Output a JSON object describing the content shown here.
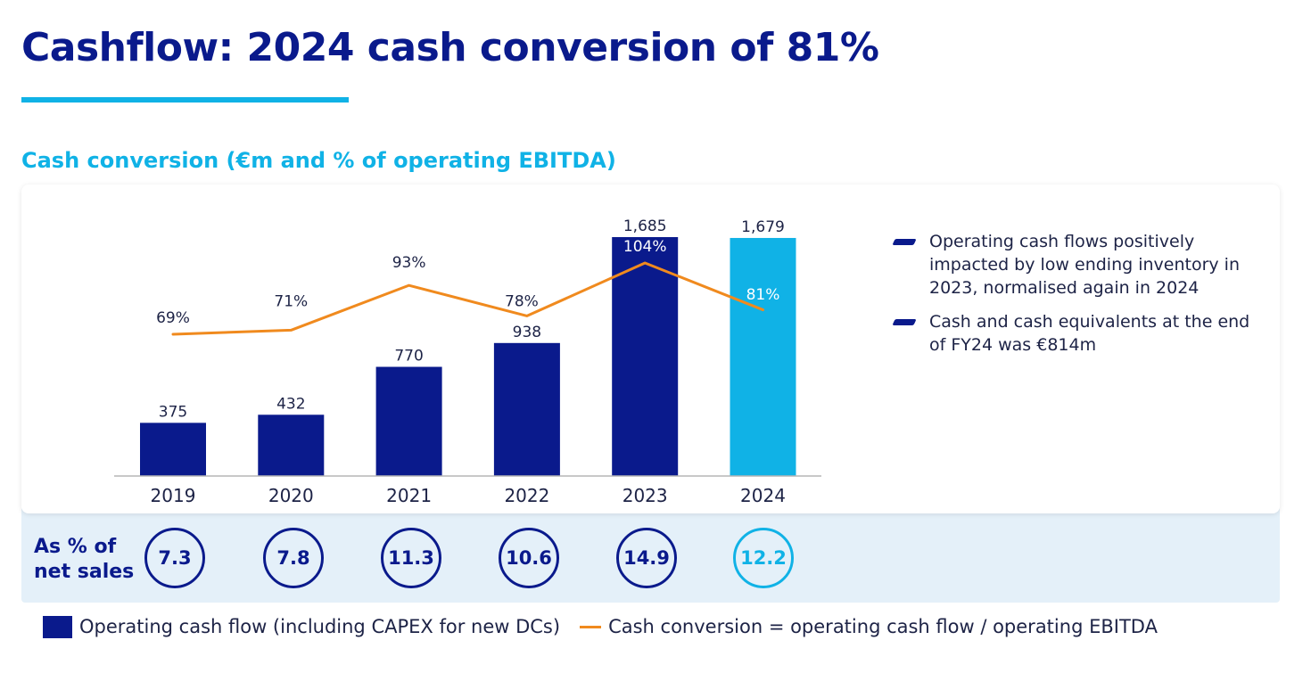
{
  "header": {
    "title": "Cashflow: 2024 cash conversion of 81%",
    "subtitle": "Cash conversion (€m and % of operating EBITDA)"
  },
  "colors": {
    "dark_blue": "#0a1a8c",
    "light_blue": "#10b2e6",
    "orange": "#f08a1e",
    "band": "#e4f0f9"
  },
  "chart_data": {
    "type": "bar",
    "title": "Cash conversion (€m and % of operating EBITDA)",
    "categories": [
      "2019",
      "2020",
      "2021",
      "2022",
      "2023",
      "2024"
    ],
    "series": [
      {
        "name": "Operating cash flow (including CAPEX for new DCs)",
        "kind": "bar",
        "values": [
          375,
          432,
          770,
          938,
          1685,
          1679
        ],
        "labels": [
          "375",
          "432",
          "770",
          "938",
          "1,685",
          "1,679"
        ],
        "highlight_index": 5
      },
      {
        "name": "Cash conversion = operating cash flow / operating EBITDA",
        "kind": "line",
        "values": [
          69,
          71,
          93,
          78,
          104,
          81
        ],
        "labels": [
          "69%",
          "71%",
          "93%",
          "78%",
          "104%",
          "81%"
        ]
      }
    ],
    "ylim": [
      0,
      1700
    ],
    "line_ylim": [
      0,
      110
    ],
    "xlabel": "",
    "ylabel": ""
  },
  "bullets": [
    "Operating cash flows positively impacted by low ending inventory in 2023, normalised again in 2024",
    "Cash and cash equivalents at the end of FY24 was €814m"
  ],
  "net_sales": {
    "label": "As % of net sales",
    "values": [
      "7.3",
      "7.8",
      "11.3",
      "10.6",
      "14.9",
      "12.2"
    ]
  },
  "legend": {
    "bar_label": "Operating cash flow (including CAPEX for new DCs)",
    "line_label": "Cash conversion = operating cash flow / operating EBITDA"
  }
}
